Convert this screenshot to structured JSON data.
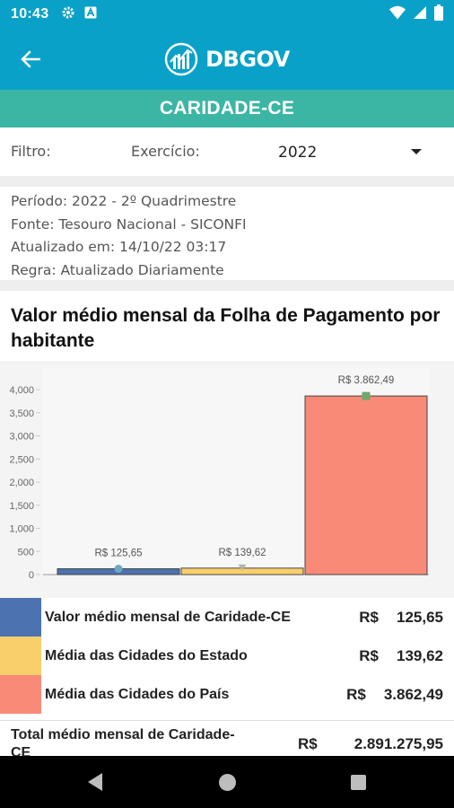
{
  "status_bar": {
    "time": "10:43"
  },
  "app_bar": {
    "brand": "DBGOV"
  },
  "city": {
    "name": "CARIDADE-CE"
  },
  "filter": {
    "label": "Filtro:",
    "exercise_label": "Exercício:",
    "exercise_value": "2022"
  },
  "info": {
    "period": "Período: 2022 - 2º Quadrimestre",
    "source": "Fonte: Tesouro Nacional - SICONFI",
    "updated": "Atualizado em: 14/10/22 03:17",
    "rule": "Regra: Atualizado Diariamente"
  },
  "chart_section": {
    "title": "Valor médio mensal da Folha de Pagamento por habitante"
  },
  "chart_data": {
    "type": "bar",
    "title": "Valor médio mensal da Folha de Pagamento por habitante",
    "categories": [
      "Valor médio mensal de Caridade-CE",
      "Média das Cidades do Estado",
      "Média das Cidades do País"
    ],
    "values": [
      125.65,
      139.62,
      3862.49
    ],
    "data_labels": [
      "R$  125,65",
      "R$  139,62",
      "R$  3.862,49"
    ],
    "colors": [
      "#4c72b0",
      "#f9cf6b",
      "#f98a78"
    ],
    "marker_colors": [
      "#6fa7c0",
      "#b5b5a8",
      "#70a86a"
    ],
    "yticks": [
      0,
      500,
      1000,
      1500,
      2000,
      2500,
      3000,
      3500,
      4000
    ],
    "ytick_labels": [
      "0",
      "500",
      "1,000",
      "1,500",
      "2,000",
      "2,500",
      "3,000",
      "3,500",
      "4,000"
    ],
    "ylim": [
      0,
      4000
    ],
    "grid": false
  },
  "legend": [
    {
      "label": "Valor médio mensal de Caridade-CE",
      "currency": "R$",
      "value": "125,65",
      "color": "#4c72b0"
    },
    {
      "label": "Média das Cidades do Estado",
      "currency": "R$",
      "value": "139,62",
      "color": "#f9cf6b"
    },
    {
      "label": "Média das Cidades do País",
      "currency": "R$",
      "value": "3.862,49",
      "color": "#f98a78"
    }
  ],
  "total": {
    "label": "Total médio mensal de Caridade-CE",
    "currency": "R$",
    "value": "2.891.275,95"
  }
}
